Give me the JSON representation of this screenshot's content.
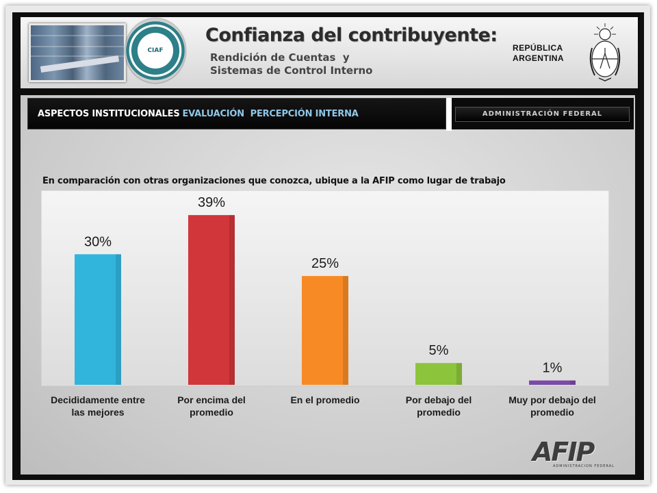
{
  "header": {
    "title": "Confianza del contribuyente:",
    "subtitle_line1": "Rendición de Cuentas  y",
    "subtitle_line2": "Sistemas de Control Interno",
    "country_line1": "REPÚBLICA",
    "country_line2": "ARGENTINA",
    "seal_text": "CIAF",
    "photo_sign_text": "..."
  },
  "section_bar": {
    "label_white": "ASPECTOS INSTITUCIONALES",
    "label_blue": "EVALUACIÓN  PERCEPCIÓN INTERNA",
    "tag": "ADMINISTRACIÓN FEDERAL"
  },
  "question": "En comparación con otras organizaciones que conozca, ubique a la AFIP como lugar de trabajo",
  "footer": {
    "logo": "AFIP",
    "logo_sub": "ADMINISTRACION FEDERAL"
  },
  "chart_data": {
    "type": "bar",
    "categories": [
      [
        "Decididamente entre",
        "las mejores"
      ],
      [
        "Por encima del",
        "promedio"
      ],
      [
        "En el promedio"
      ],
      [
        "Por debajo del",
        "promedio"
      ],
      [
        "Muy por debajo del",
        "promedio"
      ]
    ],
    "values": [
      30,
      39,
      25,
      5,
      1
    ],
    "value_labels": [
      "30%",
      "39%",
      "25%",
      "5%",
      "1%"
    ],
    "colors": [
      "#31b5dd",
      "#d0363a",
      "#f88a25",
      "#8cc43c",
      "#7a4aa6"
    ],
    "ylim": [
      0,
      45
    ],
    "legend": false,
    "grid": false
  }
}
